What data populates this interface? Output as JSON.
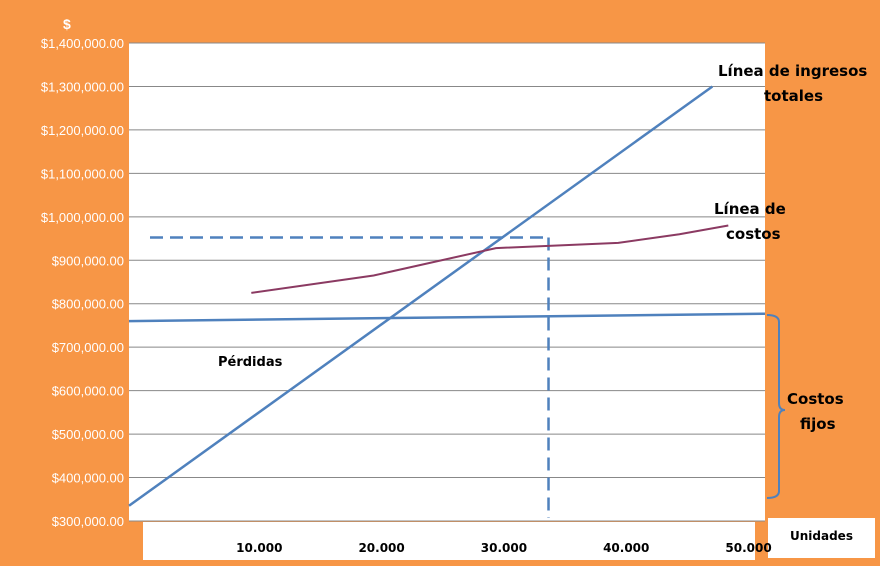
{
  "chart_data": {
    "type": "line",
    "title": "",
    "ylabel": "$",
    "xlabel": "Unidades",
    "ylim": [
      300000,
      1400000
    ],
    "y_ticks": [
      "$1,400,000.00",
      "$1,300,000.00",
      "$1,200,000.00",
      "$1,100,000.00",
      "$1,000,000.00",
      "$900,000.00",
      "$800,000.00",
      "$700,000.00",
      "$600,000.00",
      "$500,000.00",
      "$400,000.00",
      "$300,000.00"
    ],
    "y_tick_values": [
      1400000,
      1300000,
      1200000,
      1100000,
      1000000,
      900000,
      800000,
      700000,
      600000,
      500000,
      400000,
      300000
    ],
    "categories": [
      "10.000",
      "20.000",
      "30.000",
      "40.000",
      "50.000"
    ],
    "x_values": [
      10000,
      20000,
      30000,
      40000,
      50000
    ],
    "xlim": [
      0,
      52000
    ],
    "grid": true,
    "series": [
      {
        "name": "Línea de ingresos totales",
        "color": "#4f81bd",
        "x": [
          0,
          47700
        ],
        "y": [
          335000,
          1300000
        ]
      },
      {
        "name": "Línea de costos",
        "color": "#8b3a62",
        "x": [
          10000,
          20000,
          30000,
          40000,
          45000,
          49000
        ],
        "y": [
          825000,
          865000,
          928000,
          940000,
          960000,
          980000
        ]
      },
      {
        "name": "Costos fijos",
        "color": "#4f81bd",
        "x": [
          0,
          52000
        ],
        "y": [
          760000,
          777000
        ]
      }
    ],
    "break_even": {
      "x": 34300,
      "y": 950000
    },
    "annotations": {
      "revenue_line_l1": "Línea de ingresos",
      "revenue_line_l2": "totales",
      "cost_line_l1": "Línea de",
      "cost_line_l2": "costos",
      "losses": "Pérdidas",
      "fixed_l1": "Costos",
      "fixed_l2": "fijos"
    }
  }
}
